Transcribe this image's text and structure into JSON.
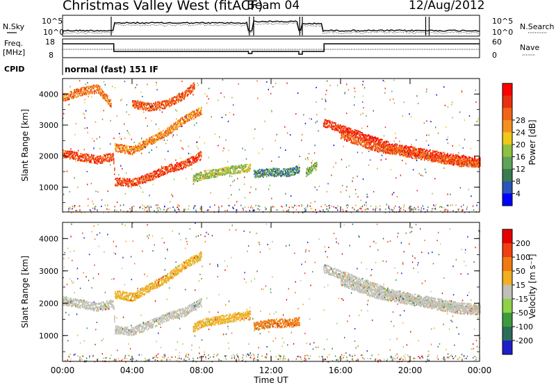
{
  "header": {
    "title": "Christmas Valley West (fitACF)",
    "beam": "Beam 04",
    "date": "12/Aug/2012"
  },
  "status_panels": {
    "nsky_label": "N.Sky",
    "nsearch_label": "N.Search",
    "noise_ticks": [
      "10^5",
      "10^0"
    ],
    "freq_label": "Freq.",
    "freq_unit": "[MHz]",
    "freq_ticks": [
      "18",
      "8"
    ],
    "nave_label": "Nave",
    "nave_ticks": [
      "60",
      "0"
    ],
    "cpid_label": "CPID",
    "cpid_value": "normal (fast) 151 IF"
  },
  "chart_data": [
    {
      "type": "heatmap",
      "name": "power-panel",
      "xlabel": "",
      "ylabel": "Slant Range [km]",
      "y_ticks": [
        "1000",
        "2000",
        "3000",
        "4000"
      ],
      "ylim": [
        200,
        4500
      ],
      "colorbar_label": "Power [dB]",
      "colorbar_ticks": [
        "4",
        "8",
        "12",
        "16",
        "20",
        "24",
        "28"
      ],
      "colorscale": [
        "#0000ff",
        "#2a55b8",
        "#3c7a50",
        "#5fa35a",
        "#90c040",
        "#f0c818",
        "#f59020",
        "#f06418",
        "#e83010",
        "#ff0000"
      ],
      "traces": [
        {
          "x_hours": [
            0,
            1,
            2,
            2.9,
            3.0,
            4,
            5,
            6,
            7,
            8
          ],
          "range_km": [
            2100,
            2000,
            1900,
            2000,
            1200,
            1150,
            1350,
            1600,
            1750,
            2050
          ],
          "level": 0.85
        },
        {
          "x_hours": [
            3.0,
            4,
            5,
            6,
            7,
            8
          ],
          "range_km": [
            2300,
            2200,
            2500,
            2800,
            3200,
            3500
          ],
          "level": 0.7
        },
        {
          "x_hours": [
            0,
            1,
            2,
            2.8
          ],
          "range_km": [
            3900,
            4100,
            4200,
            3700
          ],
          "level": 0.75
        },
        {
          "x_hours": [
            4,
            5,
            6,
            7,
            7.6
          ],
          "range_km": [
            3700,
            3600,
            3700,
            4000,
            4300
          ],
          "level": 0.8
        },
        {
          "x_hours": [
            7.5,
            8,
            9,
            10,
            10.8
          ],
          "range_km": [
            1250,
            1400,
            1500,
            1600,
            1650
          ],
          "level": 0.45
        },
        {
          "x_hours": [
            11,
            12,
            13,
            13.6
          ],
          "range_km": [
            1450,
            1500,
            1500,
            1600
          ],
          "level": 0.25
        },
        {
          "x_hours": [
            14,
            14.6
          ],
          "range_km": [
            1500,
            1700
          ],
          "level": 0.4
        },
        {
          "x_hours": [
            15,
            16,
            17,
            18,
            19,
            20,
            21,
            22,
            23,
            24
          ],
          "range_km": [
            3100,
            2900,
            2700,
            2500,
            2300,
            2200,
            2100,
            2000,
            1900,
            1850
          ],
          "level": 0.9
        },
        {
          "x_hours": [
            16,
            17,
            18,
            19,
            20,
            21,
            22,
            23,
            24
          ],
          "range_km": [
            2700,
            2500,
            2300,
            2200,
            2100,
            2000,
            1900,
            1800,
            1800
          ],
          "level": 0.8
        }
      ]
    },
    {
      "type": "heatmap",
      "name": "velocity-panel",
      "xlabel": "Time UT",
      "ylabel": "Slant Range [km]",
      "x_ticks": [
        "00:00",
        "04:00",
        "08:00",
        "12:00",
        "16:00",
        "20:00",
        "00:00"
      ],
      "y_ticks": [
        "1000",
        "2000",
        "3000",
        "4000"
      ],
      "ylim": [
        200,
        4500
      ],
      "colorbar_label": "Velocity [m s⁻¹]",
      "colorbar_ticks": [
        "200",
        "100",
        "50",
        "15",
        "-15",
        "-50",
        "-100",
        "-200"
      ],
      "colorscale": [
        "#1e1ec8",
        "#2a6e5a",
        "#3e9a3e",
        "#8ed24a",
        "#c0c0b8",
        "#f0b020",
        "#f07a10",
        "#f04010",
        "#e80000"
      ],
      "traces": [
        {
          "x_hours": [
            0,
            1,
            2,
            2.9,
            3.0,
            4,
            5,
            6,
            7,
            8
          ],
          "range_km": [
            2100,
            2000,
            1900,
            2000,
            1200,
            1150,
            1350,
            1600,
            1750,
            2050
          ],
          "level": 4
        },
        {
          "x_hours": [
            3.0,
            4,
            5,
            6,
            7,
            8
          ],
          "range_km": [
            2300,
            2200,
            2500,
            2800,
            3200,
            3500
          ],
          "level": 5
        },
        {
          "x_hours": [
            7.5,
            8,
            9,
            10,
            10.8
          ],
          "range_km": [
            1250,
            1400,
            1500,
            1600,
            1650
          ],
          "level": 5
        },
        {
          "x_hours": [
            11,
            12,
            13,
            13.6
          ],
          "range_km": [
            1300,
            1400,
            1400,
            1450
          ],
          "level": 6
        },
        {
          "x_hours": [
            15,
            16,
            17,
            18,
            19,
            20,
            21,
            22,
            23,
            24
          ],
          "range_km": [
            3100,
            2900,
            2700,
            2500,
            2300,
            2200,
            2100,
            2000,
            1900,
            1850
          ],
          "level": 4
        },
        {
          "x_hours": [
            16,
            17,
            18,
            19,
            20,
            21,
            22,
            23,
            24
          ],
          "range_km": [
            2700,
            2500,
            2300,
            2200,
            2100,
            2000,
            1900,
            1800,
            1800
          ],
          "level": 4
        }
      ]
    }
  ]
}
